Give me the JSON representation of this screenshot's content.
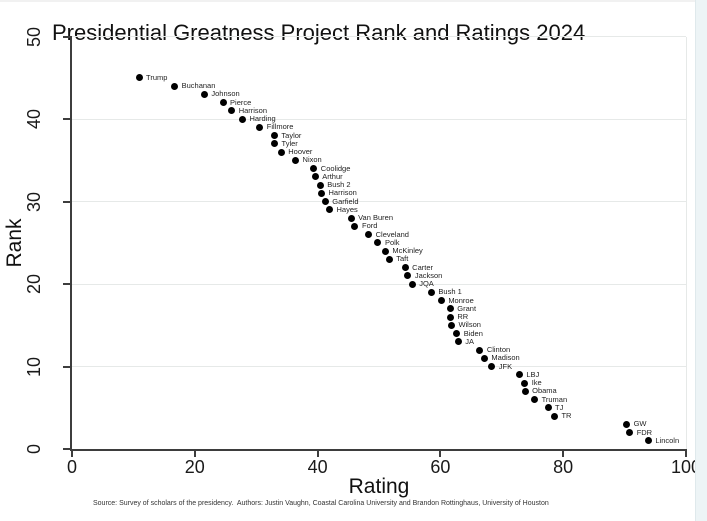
{
  "title": "Presidential Greatness Project Rank and Ratings 2024",
  "source_note": "Source: Survey of scholars of the presidency.  Authors: Justin Vaughn, Coastal Carolina University and Brandon Rottinghaus, University of Houston",
  "colors": {
    "marker": "#000000",
    "axis": "#3d3d3d",
    "grid": "#e6e9e8",
    "tick_text": "#1a1a1a",
    "label_text": "#1f1f1f",
    "title_text": "#111111",
    "note_text": "#333333",
    "window_edge": "#edf4f6"
  },
  "chart_data": {
    "type": "scatter",
    "title": "Presidential Greatness Project Rank and Ratings 2024",
    "xlabel": "Rating",
    "ylabel": "Rank",
    "xlim": [
      0,
      100
    ],
    "ylim": [
      0,
      50
    ],
    "x_ticks": [
      0,
      20,
      40,
      60,
      80,
      100
    ],
    "y_ticks": [
      0,
      10,
      20,
      30,
      40,
      50
    ],
    "grid": "horizontal gridlines at y ticks, light gray; right plot frame line",
    "legend": "none; each point labeled to its right",
    "marker": "filled black circle",
    "source_note": "Source: Survey of scholars of the presidency.  Authors: Justin Vaughn, Coastal Carolina University and Brandon Rottinghaus, University of Houston",
    "points": [
      {
        "name": "Trump",
        "rating": 10.92,
        "rank": 45
      },
      {
        "name": "Buchanan",
        "rating": 16.71,
        "rank": 44
      },
      {
        "name": "Johnson",
        "rating": 21.56,
        "rank": 43
      },
      {
        "name": "Pierce",
        "rating": 24.6,
        "rank": 42
      },
      {
        "name": "Harrison",
        "rating": 26.01,
        "rank": 41
      },
      {
        "name": "Harding",
        "rating": 27.76,
        "rank": 40
      },
      {
        "name": "Fillmore",
        "rating": 30.58,
        "rank": 39
      },
      {
        "name": "Taylor",
        "rating": 32.97,
        "rank": 38
      },
      {
        "name": "Tyler",
        "rating": 32.99,
        "rank": 37
      },
      {
        "name": "Hoover",
        "rating": 34.08,
        "rank": 36
      },
      {
        "name": "Nixon",
        "rating": 36.41,
        "rank": 35
      },
      {
        "name": "Coolidge",
        "rating": 39.38,
        "rank": 34
      },
      {
        "name": "Arthur",
        "rating": 39.61,
        "rank": 33
      },
      {
        "name": "Bush 2",
        "rating": 40.43,
        "rank": 32
      },
      {
        "name": "Harrison",
        "rating": 40.64,
        "rank": 31
      },
      {
        "name": "Garfield",
        "rating": 41.25,
        "rank": 30
      },
      {
        "name": "Hayes",
        "rating": 41.94,
        "rank": 29
      },
      {
        "name": "Van Buren",
        "rating": 45.46,
        "rank": 28
      },
      {
        "name": "Ford",
        "rating": 46.09,
        "rank": 27
      },
      {
        "name": "Cleveland",
        "rating": 48.31,
        "rank": 26
      },
      {
        "name": "Polk",
        "rating": 49.83,
        "rank": 25
      },
      {
        "name": "McKinley",
        "rating": 51.04,
        "rank": 24
      },
      {
        "name": "Taft",
        "rating": 51.67,
        "rank": 23
      },
      {
        "name": "Carter",
        "rating": 54.26,
        "rank": 22
      },
      {
        "name": "Jackson",
        "rating": 54.7,
        "rank": 21
      },
      {
        "name": "JQA",
        "rating": 55.41,
        "rank": 20
      },
      {
        "name": "Bush 1",
        "rating": 58.54,
        "rank": 19
      },
      {
        "name": "Monroe",
        "rating": 60.15,
        "rank": 18
      },
      {
        "name": "Grant",
        "rating": 61.61,
        "rank": 17
      },
      {
        "name": "RR",
        "rating": 61.62,
        "rank": 16
      },
      {
        "name": "Wilson",
        "rating": 61.8,
        "rank": 15
      },
      {
        "name": "Biden",
        "rating": 62.66,
        "rank": 14
      },
      {
        "name": "JA",
        "rating": 62.9,
        "rank": 13
      },
      {
        "name": "Clinton",
        "rating": 66.42,
        "rank": 12
      },
      {
        "name": "Madison",
        "rating": 67.16,
        "rank": 11
      },
      {
        "name": "JFK",
        "rating": 68.37,
        "rank": 10
      },
      {
        "name": "LBJ",
        "rating": 72.86,
        "rank": 9
      },
      {
        "name": "Ike",
        "rating": 73.73,
        "rank": 8
      },
      {
        "name": "Obama",
        "rating": 73.8,
        "rank": 7
      },
      {
        "name": "Truman",
        "rating": 75.34,
        "rank": 6
      },
      {
        "name": "TJ",
        "rating": 77.53,
        "rank": 5
      },
      {
        "name": "TR",
        "rating": 78.58,
        "rank": 4
      },
      {
        "name": "GW",
        "rating": 90.32,
        "rank": 3
      },
      {
        "name": "FDR",
        "rating": 90.83,
        "rank": 2
      },
      {
        "name": "Lincoln",
        "rating": 93.87,
        "rank": 1
      }
    ]
  }
}
